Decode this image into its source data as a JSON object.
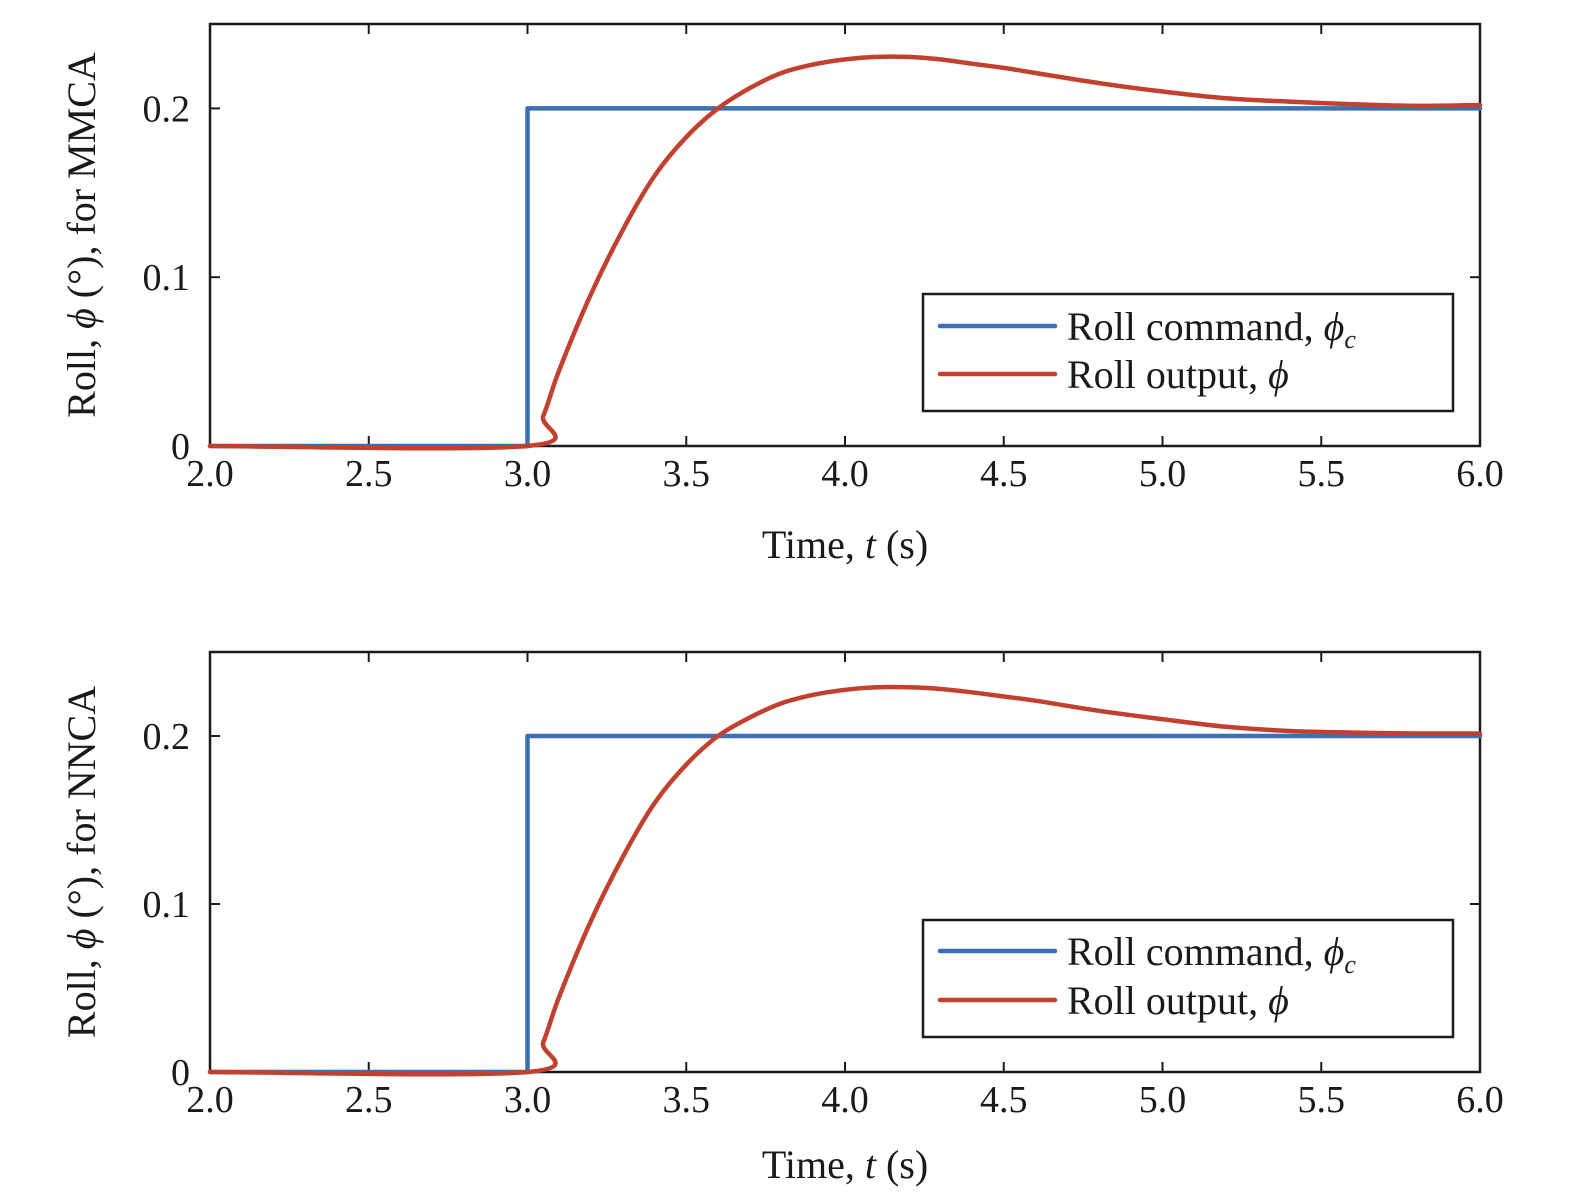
{
  "colors": {
    "command": "#3b6fb6",
    "output": "#c2402e",
    "axis": "#1a1a1a"
  },
  "chart_data": [
    {
      "type": "line",
      "xlabel": {
        "pre": "Time, ",
        "var": "t",
        "post": " (s)"
      },
      "ylabel": {
        "pre": "Roll, ",
        "var": "ϕ",
        "post": " (°), for MMCA"
      },
      "xlim": [
        2.0,
        6.0
      ],
      "ylim": [
        0,
        0.25
      ],
      "xticks": [
        2.0,
        2.5,
        3.0,
        3.5,
        4.0,
        4.5,
        5.0,
        5.5,
        6.0
      ],
      "xtick_labels": [
        "2.0",
        "2.5",
        "3.0",
        "3.5",
        "4.0",
        "4.5",
        "5.0",
        "5.5",
        "6.0"
      ],
      "yticks": [
        0,
        0.1,
        0.2
      ],
      "ytick_labels": [
        "0",
        "0.1",
        "0.2"
      ],
      "legend_position": "lower-right",
      "series": [
        {
          "name": {
            "pre": "Roll command, ",
            "var": "ϕ",
            "sub": "c"
          },
          "color_key": "command",
          "x": [
            2.0,
            3.0,
            3.0,
            6.0
          ],
          "y": [
            0,
            0,
            0.2,
            0.2
          ]
        },
        {
          "name": {
            "pre": "Roll output, ",
            "var": "ϕ",
            "sub": ""
          },
          "color_key": "output",
          "x": [
            2.0,
            3.0,
            3.05,
            3.1,
            3.2,
            3.3,
            3.4,
            3.5,
            3.6,
            3.7,
            3.8,
            3.9,
            4.0,
            4.1,
            4.2,
            4.3,
            4.4,
            4.5,
            4.6,
            4.8,
            5.0,
            5.2,
            5.4,
            5.6,
            5.8,
            6.0
          ],
          "y": [
            0,
            0,
            0.018,
            0.045,
            0.09,
            0.128,
            0.16,
            0.183,
            0.2,
            0.212,
            0.221,
            0.226,
            0.229,
            0.2305,
            0.2305,
            0.229,
            0.2265,
            0.224,
            0.221,
            0.215,
            0.21,
            0.206,
            0.204,
            0.2025,
            0.2015,
            0.202
          ]
        }
      ]
    },
    {
      "type": "line",
      "xlabel": {
        "pre": "Time, ",
        "var": "t",
        "post": " (s)"
      },
      "ylabel": {
        "pre": "Roll, ",
        "var": "ϕ",
        "post": " (°), for NNCA"
      },
      "xlim": [
        2.0,
        6.0
      ],
      "ylim": [
        0,
        0.25
      ],
      "xticks": [
        2.0,
        2.5,
        3.0,
        3.5,
        4.0,
        4.5,
        5.0,
        5.5,
        6.0
      ],
      "xtick_labels": [
        "2.0",
        "2.5",
        "3.0",
        "3.5",
        "4.0",
        "4.5",
        "5.0",
        "5.5",
        "6.0"
      ],
      "yticks": [
        0,
        0.1,
        0.2
      ],
      "ytick_labels": [
        "0",
        "0.1",
        "0.2"
      ],
      "legend_position": "lower-right",
      "series": [
        {
          "name": {
            "pre": "Roll command, ",
            "var": "ϕ",
            "sub": "c"
          },
          "color_key": "command",
          "x": [
            2.0,
            3.0,
            3.0,
            6.0
          ],
          "y": [
            0,
            0,
            0.2,
            0.2
          ]
        },
        {
          "name": {
            "pre": "Roll output, ",
            "var": "ϕ",
            "sub": ""
          },
          "color_key": "output",
          "x": [
            2.0,
            3.0,
            3.05,
            3.1,
            3.2,
            3.3,
            3.4,
            3.5,
            3.6,
            3.7,
            3.8,
            3.9,
            4.0,
            4.1,
            4.2,
            4.3,
            4.4,
            4.5,
            4.6,
            4.8,
            5.0,
            5.2,
            5.4,
            5.6,
            5.8,
            6.0
          ],
          "y": [
            0,
            0,
            0.018,
            0.045,
            0.09,
            0.128,
            0.16,
            0.183,
            0.2,
            0.211,
            0.2195,
            0.2245,
            0.2275,
            0.229,
            0.229,
            0.228,
            0.226,
            0.2235,
            0.221,
            0.215,
            0.21,
            0.2055,
            0.203,
            0.202,
            0.2015,
            0.2015
          ]
        }
      ]
    }
  ]
}
